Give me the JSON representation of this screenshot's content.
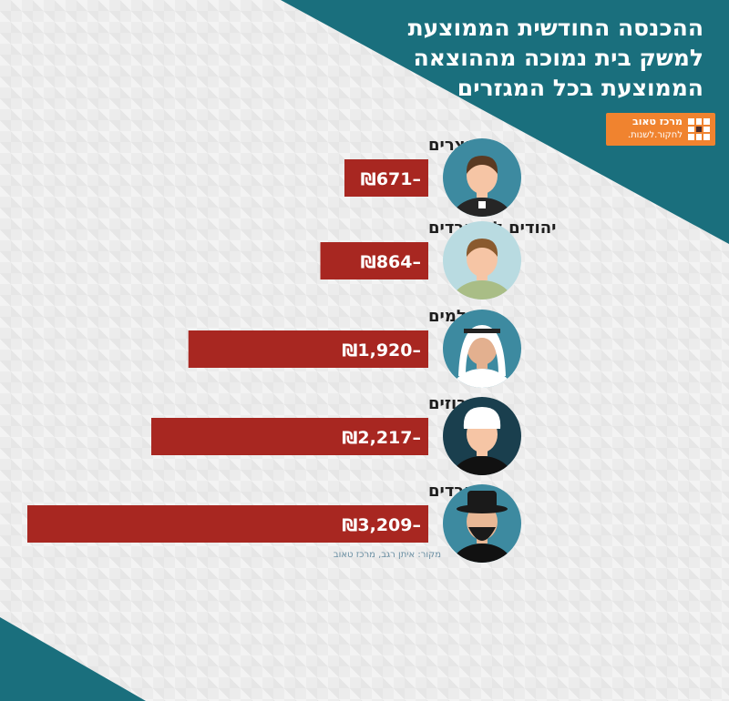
{
  "header": {
    "title_lines": [
      "ההכנסה החודשית הממוצעת",
      "למשק בית נמוכה מההוצאה",
      "הממוצעת בכל המגזרים"
    ]
  },
  "logo": {
    "name": "מרכז טאוב",
    "tagline": "לחקור.לשנות."
  },
  "colors": {
    "teal": "#1a6f7d",
    "bar": "#a82721",
    "logo": "#f0832f",
    "text": "#1e1e1e"
  },
  "chart_data": {
    "type": "bar",
    "orientation": "horizontal",
    "categories": [
      "נוצרים",
      "יהודים לא חרדים",
      "מוסלמים",
      "דרוזים",
      "חרדים"
    ],
    "values": [
      -671,
      -864,
      -1920,
      -2217,
      -3209
    ],
    "value_labels": [
      "₪671–",
      "₪864–",
      "₪1,920–",
      "₪2,217–",
      "₪3,209–"
    ],
    "icons": [
      "christian-person-icon",
      "secular-person-icon",
      "muslim-person-icon",
      "druze-person-icon",
      "haredi-person-icon"
    ],
    "title": "ההכנסה החודשית הממוצעת למשק בית נמוכה מההוצאה הממוצעת בכל המגזרים",
    "source": "מקור: איתן רגב, מרכז טאוב"
  }
}
